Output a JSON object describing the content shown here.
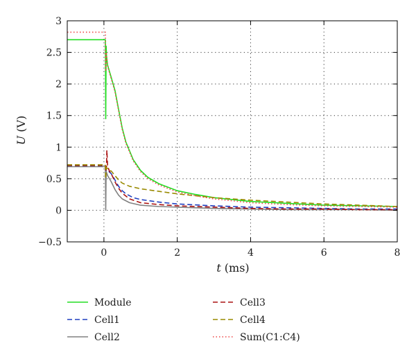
{
  "chart_data": {
    "type": "line",
    "title": "",
    "xlabel": {
      "symbol": "t",
      "unit": "(ms)"
    },
    "ylabel": {
      "symbol": "U",
      "unit": "(V)"
    },
    "xlim": [
      -1,
      8
    ],
    "ylim": [
      -0.5,
      3
    ],
    "xticks": [
      0,
      2,
      4,
      6,
      8
    ],
    "yticks": [
      -0.5,
      0,
      0.5,
      1,
      1.5,
      2,
      2.5,
      3
    ],
    "xtick_labels": [
      "0",
      "2",
      "4",
      "6",
      "8"
    ],
    "ytick_labels": [
      "−0.5",
      "0",
      "0.5",
      "1",
      "1.5",
      "2",
      "2.5",
      "3"
    ],
    "grid": true,
    "legend_position": "below",
    "series": [
      {
        "name": "Module",
        "color": "#22dd22",
        "style": "solid",
        "x": [
          -1,
          0,
          0.04,
          0.05,
          0.06,
          0.07,
          0.08,
          0.1,
          0.15,
          0.2,
          0.3,
          0.4,
          0.5,
          0.6,
          0.8,
          1.0,
          1.2,
          1.5,
          2.0,
          2.5,
          3.0,
          4.0,
          5.0,
          6.0,
          7.0,
          8.0
        ],
        "y": [
          2.7,
          2.7,
          2.7,
          1.45,
          2.6,
          2.45,
          2.4,
          2.3,
          2.2,
          2.1,
          1.9,
          1.6,
          1.3,
          1.08,
          0.8,
          0.63,
          0.52,
          0.42,
          0.31,
          0.25,
          0.2,
          0.14,
          0.11,
          0.08,
          0.07,
          0.06
        ]
      },
      {
        "name": "Cell1",
        "color": "#1f3fbf",
        "style": "dashed",
        "x": [
          -1,
          0,
          0.04,
          0.05,
          0.06,
          0.1,
          0.2,
          0.3,
          0.4,
          0.5,
          0.6,
          0.8,
          1.0,
          1.5,
          2.0,
          3.0,
          4.0,
          5.0,
          6.0,
          7.0,
          8.0
        ],
        "y": [
          0.7,
          0.7,
          0.7,
          0.4,
          0.65,
          0.63,
          0.58,
          0.48,
          0.38,
          0.31,
          0.26,
          0.2,
          0.17,
          0.13,
          0.1,
          0.07,
          0.05,
          0.04,
          0.03,
          0.02,
          0.02
        ]
      },
      {
        "name": "Cell2",
        "color": "#808080",
        "style": "solid",
        "x": [
          -1,
          0,
          0.04,
          0.05,
          0.06,
          0.07,
          0.1,
          0.2,
          0.3,
          0.4,
          0.5,
          0.7,
          1.0,
          1.5,
          2.0,
          3.0,
          4.0,
          5.0,
          6.0,
          7.0,
          8.0
        ],
        "y": [
          0.69,
          0.69,
          0.69,
          0.0,
          0.62,
          0.6,
          0.55,
          0.45,
          0.33,
          0.24,
          0.18,
          0.12,
          0.08,
          0.06,
          0.05,
          0.03,
          0.02,
          0.01,
          0.01,
          0.01,
          0.0
        ]
      },
      {
        "name": "Cell3",
        "color": "#aa1111",
        "style": "dashed",
        "x": [
          -1,
          0,
          0.04,
          0.05,
          0.07,
          0.08,
          0.1,
          0.15,
          0.2,
          0.3,
          0.4,
          0.5,
          0.7,
          1.0,
          1.5,
          2.0,
          3.0,
          4.0,
          5.0,
          6.0,
          7.0,
          8.0
        ],
        "y": [
          0.71,
          0.71,
          0.71,
          0.55,
          0.7,
          0.95,
          0.7,
          0.62,
          0.58,
          0.45,
          0.35,
          0.27,
          0.18,
          0.12,
          0.09,
          0.07,
          0.05,
          0.03,
          0.02,
          0.02,
          0.01,
          0.01
        ]
      },
      {
        "name": "Cell4",
        "color": "#998a00",
        "style": "dashed",
        "x": [
          -1,
          0,
          0.04,
          0.05,
          0.06,
          0.1,
          0.2,
          0.3,
          0.4,
          0.5,
          0.7,
          1.0,
          1.5,
          2.0,
          3.0,
          4.0,
          5.0,
          6.0,
          7.0,
          8.0
        ],
        "y": [
          0.72,
          0.72,
          0.72,
          0.5,
          0.68,
          0.66,
          0.62,
          0.55,
          0.48,
          0.43,
          0.38,
          0.34,
          0.3,
          0.26,
          0.2,
          0.16,
          0.13,
          0.1,
          0.08,
          0.06
        ]
      },
      {
        "name": "Sum(C1:C4)",
        "color": "#ee4444",
        "style": "dotted",
        "x": [
          -1,
          0,
          0.04,
          0.05,
          0.06,
          0.07,
          0.08,
          0.1,
          0.15,
          0.2,
          0.3,
          0.4,
          0.5,
          0.6,
          0.8,
          1.0,
          1.2,
          1.5,
          2.0,
          2.5,
          3.0,
          4.0,
          5.0,
          6.0,
          7.0,
          8.0
        ],
        "y": [
          2.82,
          2.82,
          2.82,
          2.2,
          2.5,
          2.45,
          2.38,
          2.28,
          2.18,
          2.08,
          1.88,
          1.58,
          1.28,
          1.06,
          0.78,
          0.61,
          0.5,
          0.4,
          0.29,
          0.23,
          0.18,
          0.12,
          0.09,
          0.07,
          0.06,
          0.05
        ]
      }
    ],
    "legend": [
      {
        "series": "Module",
        "column": 0,
        "row": 0
      },
      {
        "series": "Cell1",
        "column": 0,
        "row": 1
      },
      {
        "series": "Cell2",
        "column": 0,
        "row": 2
      },
      {
        "series": "Cell3",
        "column": 1,
        "row": 0
      },
      {
        "series": "Cell4",
        "column": 1,
        "row": 1
      },
      {
        "series": "Sum(C1:C4)",
        "column": 1,
        "row": 2
      }
    ]
  }
}
